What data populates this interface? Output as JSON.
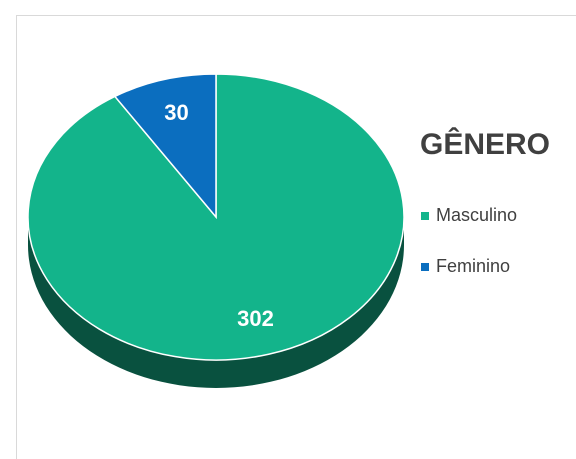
{
  "chart_data": {
    "type": "pie",
    "title": "GÊNERO",
    "categories": [
      "Masculino",
      "Feminino"
    ],
    "values": [
      302,
      30
    ],
    "colors": [
      "#13b48b",
      "#0b6ebf"
    ],
    "legend": "right"
  }
}
